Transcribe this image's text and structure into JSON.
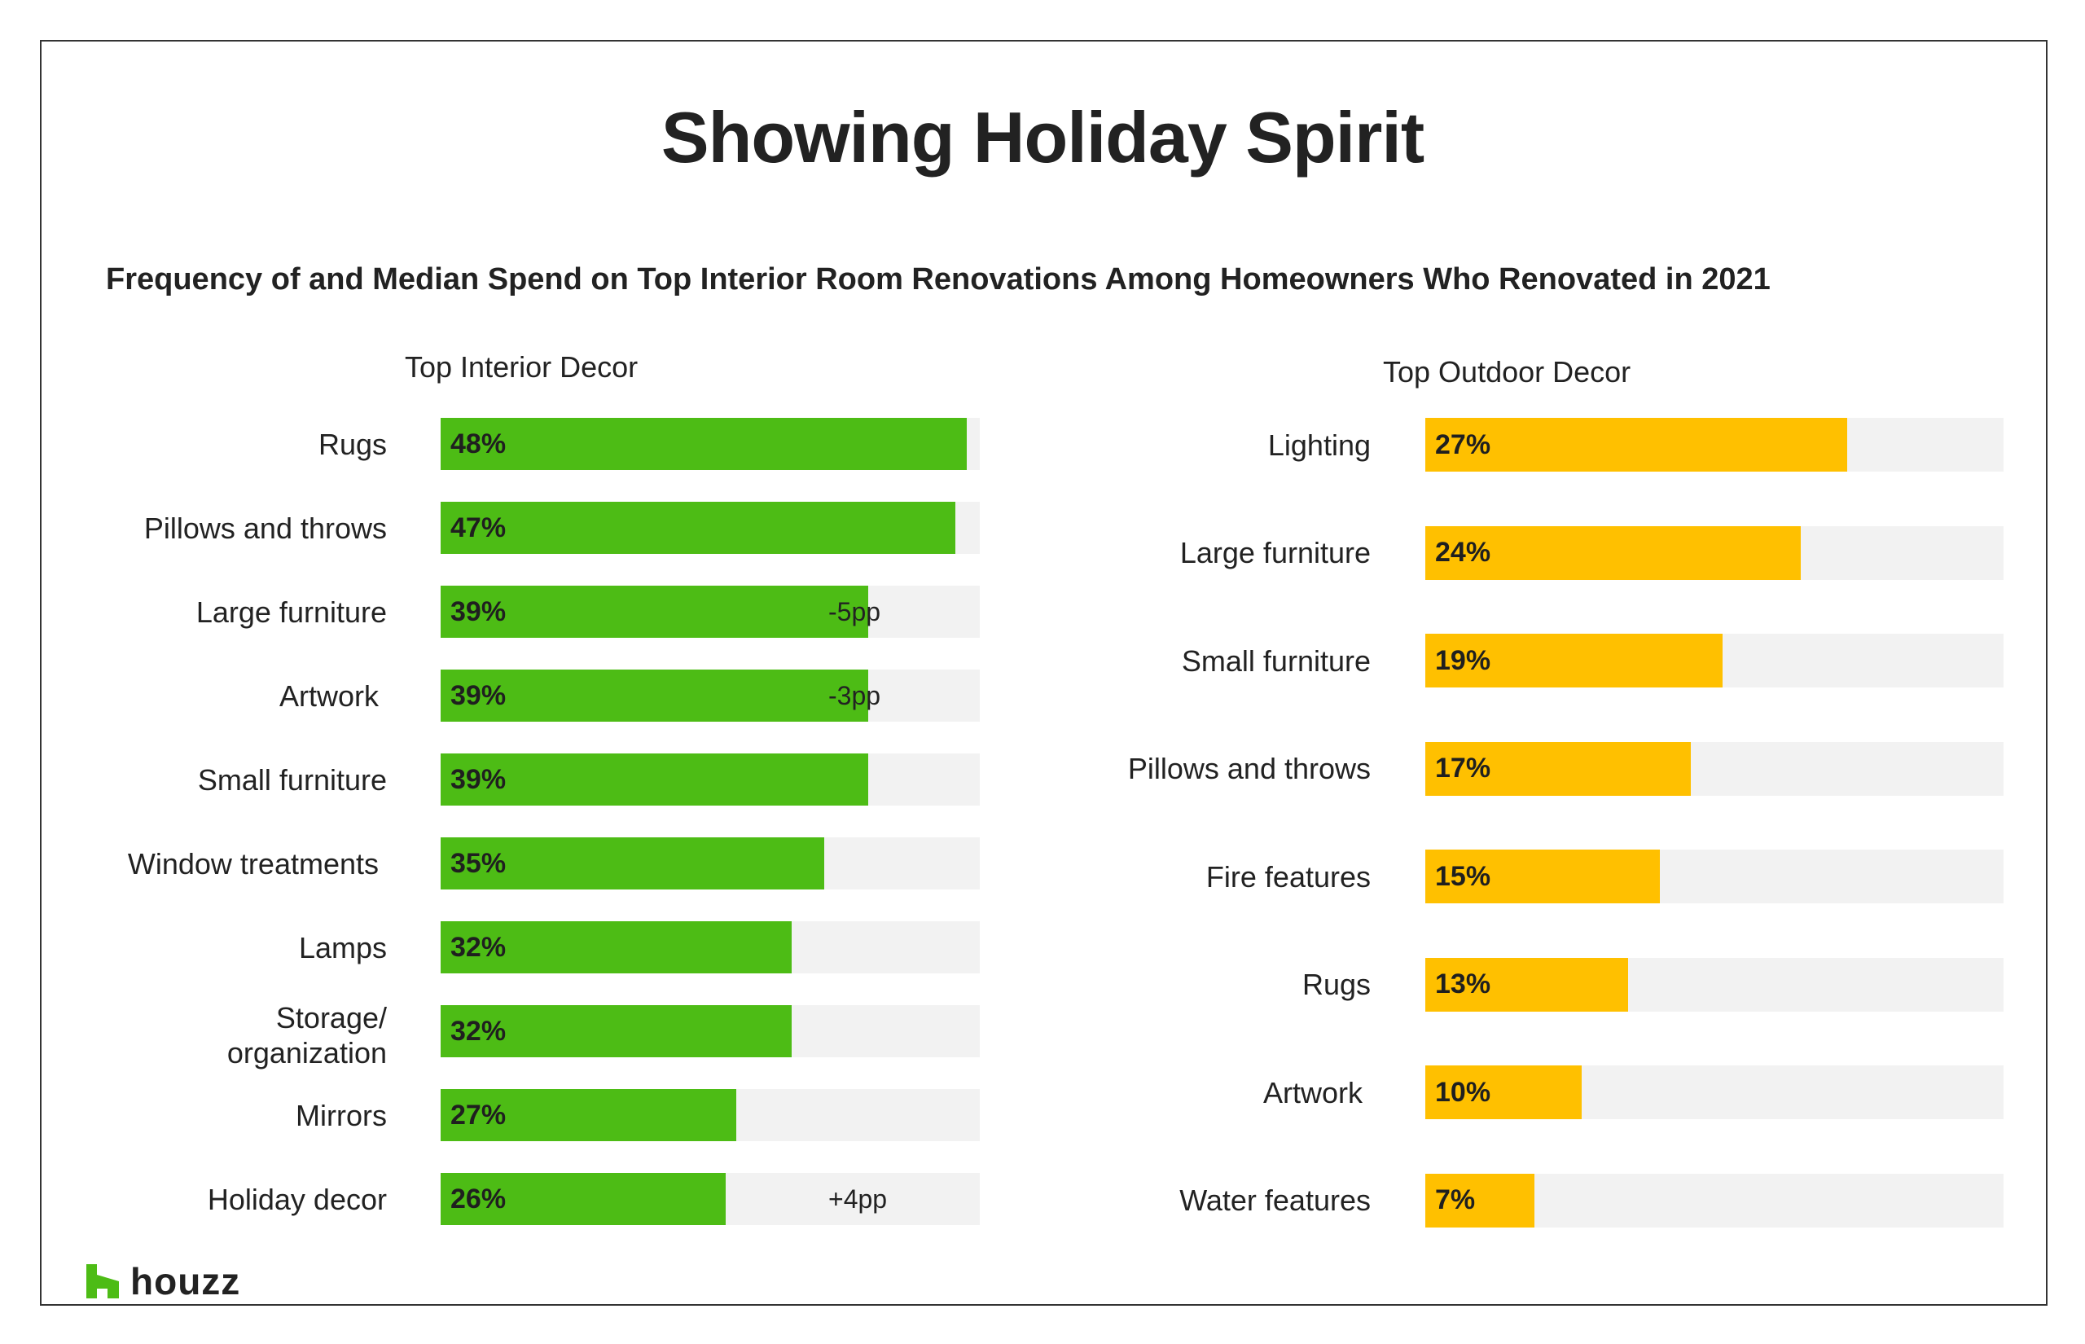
{
  "title": "Showing Holiday Spirit",
  "subtitle": "Frequency of and Median Spend on Top Interior Room Renovations Among Homeowners Who Renovated in 2021",
  "brand": {
    "name": "houzz",
    "color": "#4dbc15",
    "icon": "houzz-logo-icon"
  },
  "chart_data": [
    {
      "type": "bar",
      "orientation": "horizontal",
      "title": "Top Interior Decor",
      "color": "#4dbc15",
      "track_color": "#f2f2f2",
      "xlim": [
        0,
        100
      ],
      "categories": [
        "Rugs",
        "Pillows and throws",
        "Large furniture",
        "Artwork",
        "Small furniture",
        "Window treatments",
        "Lamps",
        "Storage/ organization",
        "Mirrors",
        "Holiday decor"
      ],
      "values": [
        48,
        47,
        39,
        39,
        39,
        35,
        32,
        32,
        27,
        26
      ],
      "value_labels": [
        "48%",
        "47%",
        "39%",
        "39%",
        "39%",
        "35%",
        "32%",
        "32%",
        "27%",
        "26%"
      ],
      "notes": [
        "",
        "",
        "-5pp",
        "-3pp",
        "",
        "",
        "",
        "",
        "",
        "+4pp"
      ]
    },
    {
      "type": "bar",
      "orientation": "horizontal",
      "title": "Top Outdoor Decor",
      "color": "#ffc000",
      "track_color": "#f2f2f2",
      "xlim": [
        0,
        100
      ],
      "categories": [
        "Lighting",
        "Large furniture",
        "Small furniture",
        "Pillows and throws",
        "Fire features",
        "Rugs",
        "Artwork",
        "Water features"
      ],
      "values": [
        27,
        24,
        19,
        17,
        15,
        13,
        10,
        7
      ],
      "value_labels": [
        "27%",
        "24%",
        "19%",
        "17%",
        "15%",
        "13%",
        "10%",
        "7%"
      ],
      "notes": [
        "",
        "",
        "",
        "",
        "",
        "",
        "",
        ""
      ]
    }
  ]
}
